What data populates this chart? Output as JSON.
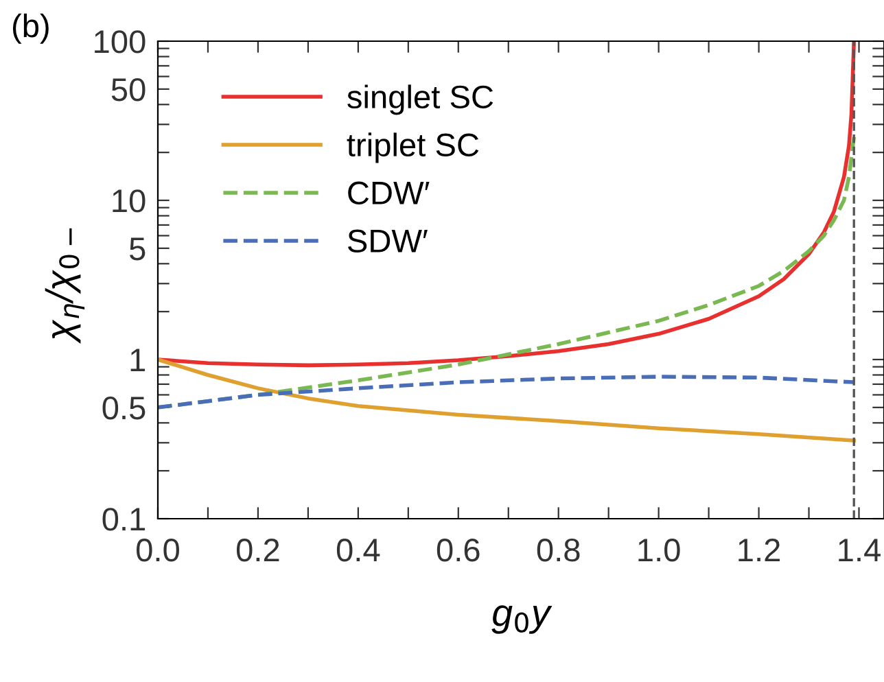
{
  "chart_data": {
    "type": "line",
    "xlabel": "g$_{0}$y",
    "ylabel": "χ$_{η}$/χ$_{0−}$",
    "annotations": [
      "(b)"
    ],
    "log": "y",
    "grid": false,
    "legend": "top left",
    "xlim": [
      0,
      1.45
    ],
    "ylim": [
      0.1,
      100
    ],
    "xticks": [
      {
        "value": 0,
        "label": "0.0"
      },
      {
        "value": 0.1,
        "label": null
      },
      {
        "value": 0.2,
        "label": "0.2"
      },
      {
        "value": 0.3,
        "label": null
      },
      {
        "value": 0.4,
        "label": "0.4"
      },
      {
        "value": 0.5,
        "label": null
      },
      {
        "value": 0.6,
        "label": "0.6"
      },
      {
        "value": 0.7,
        "label": null
      },
      {
        "value": 0.8,
        "label": "0.8"
      },
      {
        "value": 0.9,
        "label": null
      },
      {
        "value": 1.0,
        "label": "1.0"
      },
      {
        "value": 1.1,
        "label": null
      },
      {
        "value": 1.2,
        "label": "1.2"
      },
      {
        "value": 1.3,
        "label": null
      },
      {
        "value": 1.4,
        "label": "1.4"
      }
    ],
    "yticks": [
      0.1,
      {
        "value": 0.2,
        "label": null
      },
      {
        "value": 0.3,
        "label": null
      },
      {
        "value": 0.4,
        "label": null
      },
      0.5,
      {
        "value": 0.6,
        "label": null
      },
      {
        "value": 0.7,
        "label": null
      },
      {
        "value": 0.8,
        "label": null
      },
      {
        "value": 0.9,
        "label": null
      },
      1,
      {
        "value": 2,
        "label": null
      },
      {
        "value": 3,
        "label": null
      },
      {
        "value": 4,
        "label": null
      },
      5,
      {
        "value": 6,
        "label": null
      },
      {
        "value": 7,
        "label": null
      },
      {
        "value": 8,
        "label": null
      },
      {
        "value": 9,
        "label": null
      },
      10,
      {
        "value": 20,
        "label": null
      },
      {
        "value": 30,
        "label": null
      },
      {
        "value": 40,
        "label": null
      },
      50,
      {
        "value": 60,
        "label": null
      },
      {
        "value": 70,
        "label": null
      },
      {
        "value": 80,
        "label": null
      },
      {
        "value": 90,
        "label": null
      },
      100
    ],
    "ref_lines": [
      {
        "axis": "x",
        "value": 1.39,
        "color": "#555555",
        "line_style": "dashed"
      }
    ],
    "series": [
      {
        "name": "singlet SC",
        "color": "#e8302f",
        "line_style": "solid",
        "x": [
          0,
          0.1,
          0.2,
          0.3,
          0.4,
          0.5,
          0.6,
          0.7,
          0.8,
          0.9,
          1.0,
          1.1,
          1.2,
          1.25,
          1.3,
          1.33,
          1.35,
          1.37,
          1.38,
          1.385,
          1.39
        ],
        "values": [
          1,
          0.95,
          0.93,
          0.92,
          0.93,
          0.95,
          0.99,
          1.05,
          1.13,
          1.25,
          1.45,
          1.8,
          2.5,
          3.2,
          4.6,
          6.3,
          8.5,
          14,
          22,
          35,
          100
        ]
      },
      {
        "name": "triplet SC",
        "color": "#e0a030",
        "line_style": "solid",
        "x": [
          0,
          0.1,
          0.2,
          0.3,
          0.4,
          0.6,
          0.8,
          1.0,
          1.2,
          1.39
        ],
        "values": [
          1,
          0.8,
          0.66,
          0.57,
          0.51,
          0.45,
          0.41,
          0.37,
          0.34,
          0.31
        ]
      },
      {
        "name": "CDW′",
        "color": "#7ab852",
        "line_style": "dashed",
        "x": [
          0,
          0.2,
          0.4,
          0.6,
          0.8,
          1.0,
          1.1,
          1.2,
          1.25,
          1.3,
          1.33,
          1.35,
          1.37,
          1.38,
          1.39
        ],
        "values": [
          0.5,
          0.6,
          0.74,
          0.93,
          1.25,
          1.75,
          2.2,
          2.9,
          3.6,
          4.8,
          6,
          7.5,
          10,
          14,
          25
        ]
      },
      {
        "name": "SDW′",
        "color": "#4a6db8",
        "line_style": "dashed",
        "x": [
          0,
          0.2,
          0.4,
          0.6,
          0.8,
          1.0,
          1.2,
          1.39
        ],
        "values": [
          0.5,
          0.6,
          0.66,
          0.72,
          0.76,
          0.78,
          0.77,
          0.72
        ]
      }
    ]
  }
}
